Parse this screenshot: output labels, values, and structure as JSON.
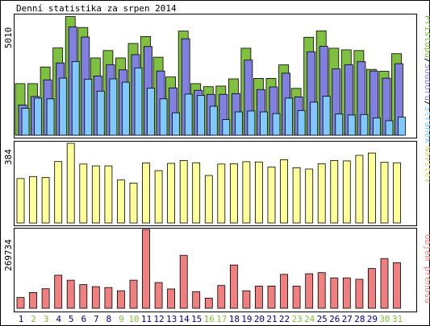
{
  "title": "Denní statistika za srpen 2014",
  "colors": {
    "pristupy": "#80c040",
    "soubory": "#8080e0",
    "stranky": "#80c8ff",
    "navstevy": "#ffff99",
    "prenos": "#f08080",
    "weekend_day": "#80c040",
    "weekday": "#000080",
    "border": "#000000"
  },
  "chart_data": [
    {
      "type": "bar",
      "panel": "hits",
      "title": "Denní statistika za srpen 2014",
      "max_label": "5010",
      "ylim": [
        0,
        5010
      ],
      "categories": [
        "1",
        "2",
        "3",
        "4",
        "5",
        "6",
        "7",
        "8",
        "9",
        "10",
        "11",
        "12",
        "13",
        "14",
        "15",
        "16",
        "17",
        "18",
        "19",
        "20",
        "21",
        "22",
        "23",
        "24",
        "25",
        "26",
        "27",
        "28",
        "29",
        "30",
        "31"
      ],
      "legend": {
        "pristupy": "Přístupů",
        "soubory": "Souborů",
        "stranky": "Stránek",
        "sep": "/"
      },
      "series": [
        {
          "name": "Přístupů",
          "values": [
            2170,
            2170,
            2870,
            3670,
            4990,
            4530,
            3250,
            3560,
            3250,
            3860,
            4150,
            3280,
            2450,
            4380,
            2170,
            2040,
            2070,
            2370,
            3660,
            2390,
            2390,
            2960,
            1970,
            4120,
            4390,
            3660,
            3590,
            3560,
            2770,
            2690,
            3430
          ]
        },
        {
          "name": "Souborů",
          "values": [
            1270,
            1630,
            2330,
            3040,
            4560,
            4130,
            2490,
            2970,
            2750,
            3390,
            3730,
            2700,
            1990,
            4060,
            1890,
            1720,
            1720,
            1750,
            3160,
            1920,
            2030,
            2610,
            1610,
            3510,
            3740,
            2790,
            2970,
            3090,
            2700,
            2400,
            3010
          ]
        },
        {
          "name": "Stránek",
          "values": [
            1130,
            1560,
            1530,
            2400,
            3100,
            2360,
            1850,
            2370,
            2230,
            2830,
            1980,
            1530,
            940,
            1730,
            1680,
            1220,
            660,
            980,
            1020,
            980,
            910,
            1560,
            1040,
            1390,
            1640,
            890,
            850,
            870,
            730,
            610,
            760
          ]
        }
      ]
    },
    {
      "type": "bar",
      "panel": "visits",
      "max_label": "384",
      "ylim": [
        0,
        384
      ],
      "legend": {
        "navstevy": "Návštěv"
      },
      "series": [
        {
          "name": "Návštěv",
          "values": [
            214,
            224,
            219,
            296,
            384,
            284,
            275,
            275,
            207,
            192,
            289,
            252,
            287,
            301,
            290,
            229,
            284,
            286,
            295,
            294,
            269,
            305,
            266,
            260,
            285,
            301,
            299,
            326,
            337,
            292,
            290
          ]
        }
      ]
    },
    {
      "type": "bar",
      "panel": "traffic",
      "max_label": "269734",
      "ylim": [
        0,
        269734
      ],
      "legend": {
        "prenos": "Objem přenosu"
      },
      "series": [
        {
          "name": "Objem přenosu",
          "values": [
            37000,
            54000,
            67000,
            113000,
            96000,
            81000,
            74000,
            71000,
            60000,
            96000,
            269734,
            88000,
            66000,
            181000,
            57000,
            35000,
            78000,
            148000,
            60000,
            76000,
            76000,
            116000,
            76000,
            118000,
            122000,
            104000,
            104000,
            99000,
            136000,
            170000,
            156000
          ]
        }
      ]
    }
  ],
  "x_axis": {
    "labels": [
      "1",
      "2",
      "3",
      "4",
      "5",
      "6",
      "7",
      "8",
      "9",
      "10",
      "11",
      "12",
      "13",
      "14",
      "15",
      "16",
      "17",
      "18",
      "19",
      "20",
      "21",
      "22",
      "23",
      "24",
      "25",
      "26",
      "27",
      "28",
      "29",
      "30",
      "31"
    ],
    "weekend": [
      2,
      3,
      9,
      10,
      16,
      17,
      23,
      24,
      30,
      31
    ]
  }
}
